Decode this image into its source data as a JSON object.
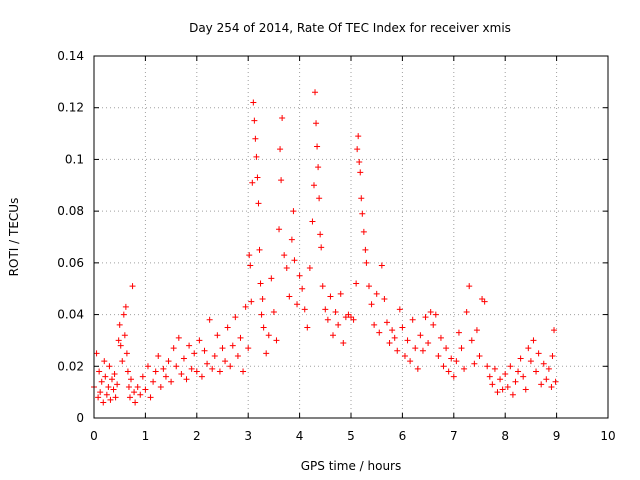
{
  "chart_data": {
    "type": "scatter",
    "title": "Day 254 of 2014, Rate Of TEC Index for receiver xmis",
    "xlabel": "GPS time / hours",
    "ylabel": "ROTI / TECUs",
    "xlim": [
      0,
      10
    ],
    "ylim": [
      0,
      0.14
    ],
    "x_ticks": [
      "0",
      "1",
      "2",
      "3",
      "4",
      "5",
      "6",
      "7",
      "8",
      "9",
      "10"
    ],
    "y_ticks": [
      "0",
      "0.02",
      "0.04",
      "0.06",
      "0.08",
      "0.1",
      "0.12",
      "0.14"
    ],
    "grid": true,
    "marker": "+",
    "color": "#ff0000",
    "series": [
      {
        "name": "ROTI",
        "points": [
          [
            0.0,
            0.012
          ],
          [
            0.05,
            0.025
          ],
          [
            0.08,
            0.008
          ],
          [
            0.1,
            0.018
          ],
          [
            0.12,
            0.01
          ],
          [
            0.15,
            0.014
          ],
          [
            0.18,
            0.006
          ],
          [
            0.2,
            0.022
          ],
          [
            0.22,
            0.016
          ],
          [
            0.25,
            0.009
          ],
          [
            0.28,
            0.012
          ],
          [
            0.3,
            0.02
          ],
          [
            0.32,
            0.007
          ],
          [
            0.35,
            0.015
          ],
          [
            0.38,
            0.011
          ],
          [
            0.4,
            0.017
          ],
          [
            0.42,
            0.008
          ],
          [
            0.45,
            0.013
          ],
          [
            0.48,
            0.03
          ],
          [
            0.5,
            0.036
          ],
          [
            0.52,
            0.028
          ],
          [
            0.55,
            0.022
          ],
          [
            0.58,
            0.04
          ],
          [
            0.6,
            0.032
          ],
          [
            0.62,
            0.043
          ],
          [
            0.64,
            0.025
          ],
          [
            0.66,
            0.018
          ],
          [
            0.68,
            0.012
          ],
          [
            0.7,
            0.008
          ],
          [
            0.72,
            0.015
          ],
          [
            0.75,
            0.051
          ],
          [
            0.78,
            0.01
          ],
          [
            0.8,
            0.006
          ],
          [
            0.85,
            0.012
          ],
          [
            0.9,
            0.009
          ],
          [
            0.95,
            0.016
          ],
          [
            1.0,
            0.011
          ],
          [
            1.05,
            0.02
          ],
          [
            1.1,
            0.008
          ],
          [
            1.15,
            0.014
          ],
          [
            1.2,
            0.018
          ],
          [
            1.25,
            0.024
          ],
          [
            1.3,
            0.012
          ],
          [
            1.35,
            0.019
          ],
          [
            1.4,
            0.016
          ],
          [
            1.45,
            0.022
          ],
          [
            1.5,
            0.014
          ],
          [
            1.55,
            0.027
          ],
          [
            1.6,
            0.02
          ],
          [
            1.65,
            0.031
          ],
          [
            1.7,
            0.017
          ],
          [
            1.75,
            0.023
          ],
          [
            1.8,
            0.015
          ],
          [
            1.85,
            0.028
          ],
          [
            1.9,
            0.019
          ],
          [
            1.95,
            0.025
          ],
          [
            2.0,
            0.018
          ],
          [
            2.05,
            0.03
          ],
          [
            2.1,
            0.016
          ],
          [
            2.15,
            0.026
          ],
          [
            2.2,
            0.021
          ],
          [
            2.25,
            0.038
          ],
          [
            2.3,
            0.019
          ],
          [
            2.35,
            0.024
          ],
          [
            2.4,
            0.032
          ],
          [
            2.45,
            0.018
          ],
          [
            2.5,
            0.027
          ],
          [
            2.55,
            0.022
          ],
          [
            2.6,
            0.035
          ],
          [
            2.65,
            0.02
          ],
          [
            2.7,
            0.028
          ],
          [
            2.75,
            0.039
          ],
          [
            2.8,
            0.024
          ],
          [
            2.85,
            0.031
          ],
          [
            2.9,
            0.018
          ],
          [
            2.95,
            0.043
          ],
          [
            3.0,
            0.027
          ],
          [
            3.02,
            0.063
          ],
          [
            3.04,
            0.059
          ],
          [
            3.06,
            0.045
          ],
          [
            3.08,
            0.091
          ],
          [
            3.1,
            0.122
          ],
          [
            3.12,
            0.115
          ],
          [
            3.14,
            0.108
          ],
          [
            3.16,
            0.101
          ],
          [
            3.18,
            0.093
          ],
          [
            3.2,
            0.083
          ],
          [
            3.22,
            0.065
          ],
          [
            3.24,
            0.052
          ],
          [
            3.26,
            0.04
          ],
          [
            3.28,
            0.046
          ],
          [
            3.3,
            0.035
          ],
          [
            3.35,
            0.025
          ],
          [
            3.4,
            0.032
          ],
          [
            3.45,
            0.054
          ],
          [
            3.5,
            0.041
          ],
          [
            3.55,
            0.03
          ],
          [
            3.6,
            0.073
          ],
          [
            3.62,
            0.104
          ],
          [
            3.64,
            0.092
          ],
          [
            3.66,
            0.116
          ],
          [
            3.7,
            0.063
          ],
          [
            3.75,
            0.058
          ],
          [
            3.8,
            0.047
          ],
          [
            3.85,
            0.069
          ],
          [
            3.88,
            0.08
          ],
          [
            3.9,
            0.061
          ],
          [
            3.95,
            0.044
          ],
          [
            4.0,
            0.055
          ],
          [
            4.05,
            0.05
          ],
          [
            4.1,
            0.042
          ],
          [
            4.15,
            0.035
          ],
          [
            4.2,
            0.058
          ],
          [
            4.25,
            0.076
          ],
          [
            4.28,
            0.09
          ],
          [
            4.3,
            0.126
          ],
          [
            4.32,
            0.114
          ],
          [
            4.34,
            0.105
          ],
          [
            4.36,
            0.097
          ],
          [
            4.38,
            0.085
          ],
          [
            4.4,
            0.071
          ],
          [
            4.42,
            0.066
          ],
          [
            4.45,
            0.051
          ],
          [
            4.5,
            0.042
          ],
          [
            4.55,
            0.038
          ],
          [
            4.6,
            0.047
          ],
          [
            4.65,
            0.032
          ],
          [
            4.7,
            0.041
          ],
          [
            4.75,
            0.036
          ],
          [
            4.8,
            0.048
          ],
          [
            4.85,
            0.029
          ],
          [
            4.9,
            0.039
          ],
          [
            4.95,
            0.04
          ],
          [
            5.0,
            0.039
          ],
          [
            5.05,
            0.038
          ],
          [
            5.1,
            0.052
          ],
          [
            5.12,
            0.104
          ],
          [
            5.14,
            0.109
          ],
          [
            5.16,
            0.099
          ],
          [
            5.18,
            0.095
          ],
          [
            5.2,
            0.085
          ],
          [
            5.22,
            0.079
          ],
          [
            5.25,
            0.072
          ],
          [
            5.28,
            0.065
          ],
          [
            5.3,
            0.06
          ],
          [
            5.35,
            0.051
          ],
          [
            5.4,
            0.044
          ],
          [
            5.45,
            0.036
          ],
          [
            5.5,
            0.048
          ],
          [
            5.55,
            0.033
          ],
          [
            5.6,
            0.059
          ],
          [
            5.65,
            0.046
          ],
          [
            5.7,
            0.037
          ],
          [
            5.75,
            0.029
          ],
          [
            5.8,
            0.034
          ],
          [
            5.85,
            0.031
          ],
          [
            5.9,
            0.026
          ],
          [
            5.95,
            0.042
          ],
          [
            6.0,
            0.035
          ],
          [
            6.05,
            0.024
          ],
          [
            6.1,
            0.03
          ],
          [
            6.15,
            0.022
          ],
          [
            6.2,
            0.038
          ],
          [
            6.25,
            0.027
          ],
          [
            6.3,
            0.019
          ],
          [
            6.35,
            0.032
          ],
          [
            6.4,
            0.026
          ],
          [
            6.45,
            0.039
          ],
          [
            6.5,
            0.029
          ],
          [
            6.55,
            0.041
          ],
          [
            6.6,
            0.036
          ],
          [
            6.65,
            0.04
          ],
          [
            6.7,
            0.024
          ],
          [
            6.75,
            0.031
          ],
          [
            6.8,
            0.02
          ],
          [
            6.85,
            0.027
          ],
          [
            6.9,
            0.018
          ],
          [
            6.95,
            0.023
          ],
          [
            7.0,
            0.016
          ],
          [
            7.05,
            0.022
          ],
          [
            7.1,
            0.033
          ],
          [
            7.15,
            0.027
          ],
          [
            7.2,
            0.019
          ],
          [
            7.25,
            0.041
          ],
          [
            7.3,
            0.051
          ],
          [
            7.35,
            0.03
          ],
          [
            7.4,
            0.021
          ],
          [
            7.45,
            0.034
          ],
          [
            7.5,
            0.024
          ],
          [
            7.55,
            0.046
          ],
          [
            7.6,
            0.045
          ],
          [
            7.65,
            0.02
          ],
          [
            7.7,
            0.016
          ],
          [
            7.75,
            0.013
          ],
          [
            7.8,
            0.019
          ],
          [
            7.85,
            0.01
          ],
          [
            7.9,
            0.015
          ],
          [
            7.95,
            0.011
          ],
          [
            8.0,
            0.017
          ],
          [
            8.05,
            0.012
          ],
          [
            8.1,
            0.02
          ],
          [
            8.15,
            0.009
          ],
          [
            8.2,
            0.014
          ],
          [
            8.25,
            0.018
          ],
          [
            8.3,
            0.023
          ],
          [
            8.35,
            0.016
          ],
          [
            8.4,
            0.011
          ],
          [
            8.45,
            0.027
          ],
          [
            8.5,
            0.022
          ],
          [
            8.55,
            0.03
          ],
          [
            8.6,
            0.018
          ],
          [
            8.65,
            0.025
          ],
          [
            8.7,
            0.013
          ],
          [
            8.75,
            0.021
          ],
          [
            8.8,
            0.015
          ],
          [
            8.85,
            0.019
          ],
          [
            8.9,
            0.012
          ],
          [
            8.92,
            0.024
          ],
          [
            8.95,
            0.034
          ],
          [
            8.98,
            0.014
          ]
        ]
      }
    ]
  }
}
